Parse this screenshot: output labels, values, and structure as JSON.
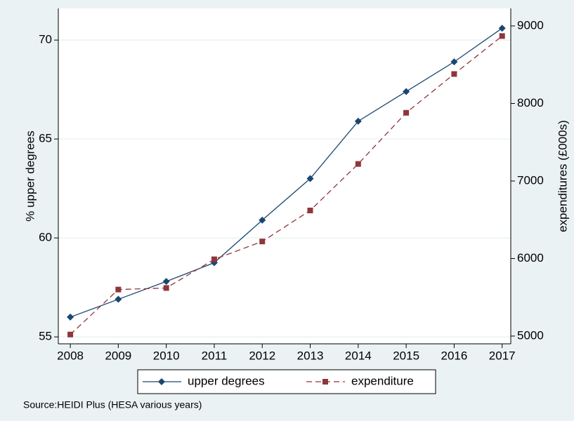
{
  "chart_data": {
    "type": "line",
    "x": [
      2008,
      2009,
      2010,
      2011,
      2012,
      2013,
      2014,
      2015,
      2016,
      2017
    ],
    "xlim": [
      2007.75,
      2017.18
    ],
    "xticks": [
      2008,
      2009,
      2010,
      2011,
      2012,
      2013,
      2014,
      2015,
      2016,
      2017
    ],
    "ylabel": "% upper degrees",
    "y2label": "expenditures (£000s)",
    "ylim": [
      54.65,
      71.6
    ],
    "yticks": [
      55,
      60,
      65,
      70
    ],
    "y2lim": [
      4900,
      9226
    ],
    "y2ticks": [
      5000,
      6000,
      7000,
      8000,
      9000
    ],
    "grid": true,
    "series": [
      {
        "name": "upper degrees",
        "color": "#1a476f",
        "marker": "diamond",
        "dash": "solid",
        "values": [
          56.0,
          56.9,
          57.8,
          58.75,
          60.9,
          63.0,
          65.9,
          67.4,
          68.9,
          70.6
        ]
      },
      {
        "name": "expenditure",
        "color": "#90353b",
        "marker": "square",
        "dash": "dashed",
        "axis": "y2",
        "values": [
          5020,
          5600,
          5620,
          5990,
          6220,
          6620,
          7220,
          7880,
          8380,
          8870
        ]
      }
    ],
    "legend": "bottom",
    "note": "Source:HEIDI Plus (HESA various years)"
  }
}
